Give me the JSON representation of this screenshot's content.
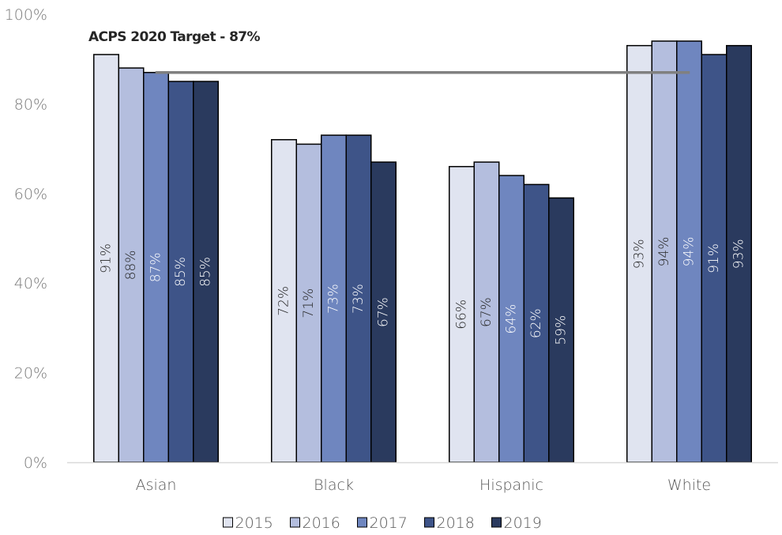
{
  "chart_data": {
    "type": "bar",
    "annotation": "ACPS 2020 Target -  87%",
    "target_value": 87,
    "categories": [
      "Asian",
      "Black",
      "Hispanic",
      "White"
    ],
    "series": [
      {
        "name": "2015",
        "color": "#e0e4f0",
        "values": [
          91,
          72,
          66,
          93
        ],
        "labels": [
          "91%",
          "72%",
          "66%",
          "93%"
        ]
      },
      {
        "name": "2016",
        "color": "#b4bede",
        "values": [
          88,
          71,
          67,
          94
        ],
        "labels": [
          "88%",
          "71%",
          "67%",
          "94%"
        ]
      },
      {
        "name": "2017",
        "color": "#6f86bf",
        "values": [
          87,
          73,
          64,
          94
        ],
        "labels": [
          "87%",
          "73%",
          "64%",
          "94%"
        ]
      },
      {
        "name": "2018",
        "color": "#3e5488",
        "values": [
          85,
          73,
          62,
          91
        ],
        "labels": [
          "85%",
          "73%",
          "62%",
          "91%"
        ]
      },
      {
        "name": "2019",
        "color": "#2a3a5e",
        "values": [
          85,
          67,
          59,
          93
        ],
        "labels": [
          "85%",
          "67%",
          "59%",
          "93%"
        ]
      }
    ],
    "label_colors": [
      "#262626",
      "#262626",
      "#ffffff",
      "#ffffff",
      "#ffffff"
    ],
    "target_color": "#808080",
    "ylim": [
      0,
      100
    ],
    "y_ticks": [
      0,
      20,
      40,
      60,
      80,
      100
    ],
    "y_tick_labels": [
      "0%",
      "20%",
      "40%",
      "60%",
      "80%",
      "100%"
    ],
    "legend_position": "bottom",
    "grid": false
  }
}
